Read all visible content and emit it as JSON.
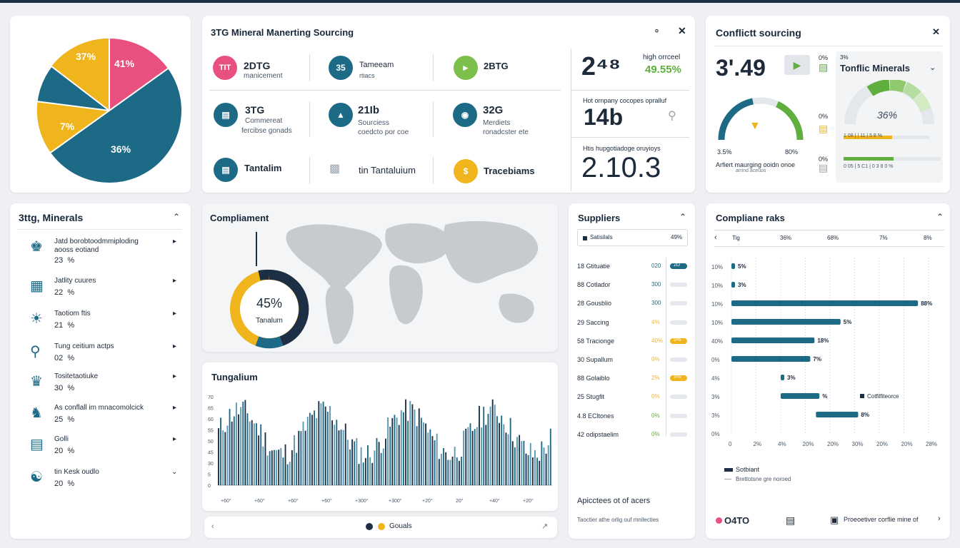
{
  "colors": {
    "navy": "#1d2f45",
    "teal": "#1d6a86",
    "yellow": "#f0b51c",
    "pink": "#e8507f",
    "green": "#5fae3e"
  },
  "pie_chart": {
    "chart_data": {
      "type": "pie",
      "slices": [
        {
          "label": "41%",
          "value": 41,
          "color": "#e8507f"
        },
        {
          "label": "36%",
          "value": 36,
          "color": "#1d6a86"
        },
        {
          "label": "7%",
          "value": 7,
          "color": "#f0b51c"
        },
        {
          "label": "37%",
          "value": 37,
          "color": "#1d6a86"
        }
      ]
    },
    "labels": [
      "37%",
      "41%",
      "7%",
      "36%"
    ]
  },
  "sourcing": {
    "title": "3TG Mineral Manerting Sourcing",
    "row1": [
      {
        "icon": "TIT",
        "title": "2DTG",
        "sub": "manicement"
      },
      {
        "icon": "35",
        "title": "Tameeam",
        "sub": "rtiacs"
      },
      {
        "icon": "flag-icon",
        "title": "2BTG",
        "sub": ""
      }
    ],
    "row2": [
      {
        "title": "3TG",
        "sub1": "Commereat",
        "sub2": "fercibse gonads"
      },
      {
        "title": "21Ib",
        "sub1": "Sourciess",
        "sub2": "coedcto por coe"
      },
      {
        "title": "32G",
        "sub1": "Merdiets",
        "sub2": "ronadcster ete"
      }
    ],
    "row3": [
      {
        "title": "Tantalim"
      },
      {
        "title": "tin Tantaluium"
      },
      {
        "title": "Tracebiams"
      }
    ],
    "stat1": {
      "big": "2⁴⁸",
      "risk_label": "high orrceel",
      "risk_value": "49.55%"
    },
    "stat2": {
      "label": "Hot ornpany cocopes opralluf",
      "big": "14b"
    },
    "stat3": {
      "label": "Htis hupgotiadoge oruyioys",
      "big": "2.10.3"
    }
  },
  "conflict": {
    "title": "Conflictt sourcing",
    "big": "3'.49",
    "left_pcts": [
      "0%",
      "0%",
      "0%"
    ],
    "gauge_min": "3.5%",
    "gauge_max": "80%",
    "caption": "Arfiert maurging ooidn onoe",
    "caption2": "arrind aceuos",
    "dropdown": "Tonflic Minerals",
    "pct_top": "3%",
    "gauge_value": "36%",
    "gauge_value_num": 36,
    "bar1": "1 08 |  | 11 |  5 8 %",
    "bar2": "0 05 | 5 C1 | 0 3 8 0 %"
  },
  "minerals": {
    "title": "3ttg, Minerals",
    "items": [
      {
        "name": "Jatd borobtoodmmiploding",
        "name2": "aooss eotiand",
        "pct": "23  %"
      },
      {
        "name": "Jatlity cuures",
        "pct": "22  %"
      },
      {
        "name": "Taotiom ftis",
        "pct": "21  %"
      },
      {
        "name": "Tung ceitium actps",
        "pct": "02  %"
      },
      {
        "name": "Tositetaotiuke",
        "pct": "30  %"
      },
      {
        "name": "As conflall im mnacomolcick",
        "pct": "25  %"
      },
      {
        "name": "Golli",
        "pct": "20  %"
      },
      {
        "name": "tin Kesk oudlo",
        "pct": "20  %"
      }
    ]
  },
  "compliance_map": {
    "title": "Compliament",
    "donut_value": "45%",
    "donut_label": "Tanalum",
    "donut_fraction": 0.45
  },
  "tungsten": {
    "title": "Tungalium",
    "chart_data": {
      "type": "bar",
      "x_tick_labels": [
        "+60°",
        "+60°",
        "+60°",
        "+60°",
        "+300°",
        "+300°",
        "+20°",
        "20°",
        "+40°",
        "+20°"
      ],
      "y_tick_labels": [
        "70",
        "65",
        "60",
        "55",
        "50",
        "45",
        "30",
        "5",
        "0"
      ],
      "ylim": [
        0,
        70
      ]
    }
  },
  "footer_legend": {
    "text": "Gouals"
  },
  "suppliers": {
    "title": "Suppliers",
    "header_label": "Satisilals",
    "header_value": "49%",
    "rows": [
      {
        "name": "18 Gtituatie",
        "value": "020",
        "badge": "2D",
        "fill": 1.0,
        "color": "#1d6a86"
      },
      {
        "name": "88 Cotlador",
        "value": "300",
        "badge": "",
        "fill": 0.0,
        "color": "#1d6a86"
      },
      {
        "name": "28 Gousblio",
        "value": "300",
        "badge": "",
        "fill": 0.0,
        "color": "#1d6a86"
      },
      {
        "name": "29 Saccing",
        "value": "4%",
        "badge": "",
        "fill": 0.0,
        "color": "#f0b51c"
      },
      {
        "name": "58 Tracionge",
        "value": "40%",
        "badge": "5%",
        "fill": 1.0,
        "color": "#f0b51c"
      },
      {
        "name": "30 Supallum",
        "value": "0%",
        "badge": "",
        "fill": 0.0,
        "color": "#f0b51c"
      },
      {
        "name": "88 Golaiblo",
        "value": "2%",
        "badge": "3%",
        "fill": 1.0,
        "color": "#f0b51c"
      },
      {
        "name": "25 Stugfit",
        "value": "0%",
        "badge": "",
        "fill": 0.0,
        "color": "#f0b51c"
      },
      {
        "name": "4.8 ECltones",
        "value": "0%",
        "badge": "",
        "fill": 0.0,
        "color": "#5fae3e"
      },
      {
        "name": "42 odipstaelim",
        "value": "0%",
        "badge": "",
        "fill": 0.0,
        "color": "#5fae3e"
      }
    ],
    "footer1": "Apicctees ot of acers",
    "footer2": "Taoctier athe orlig ouf mnilecties"
  },
  "risk": {
    "title": "Compliane raks",
    "header": [
      "Tig",
      "36%",
      "68%",
      "7%",
      "8%"
    ],
    "chart_data": {
      "type": "bar",
      "orientation": "horizontal",
      "xlim": [
        0,
        28
      ],
      "x_tick_labels": [
        "0",
        "2%",
        "4%",
        "20%",
        "20%",
        "30%",
        "20%",
        "20%",
        "28%"
      ],
      "rows": [
        {
          "y_label": "10%",
          "start": 0,
          "end": 0.3,
          "label": "5%"
        },
        {
          "y_label": "10%",
          "start": 0,
          "end": 0.3,
          "label": "3%"
        },
        {
          "y_label": "10%",
          "start": 0,
          "end": 26.5,
          "label": "88%"
        },
        {
          "y_label": "10%",
          "start": 0,
          "end": 15.5,
          "label": "5%"
        },
        {
          "y_label": "40%",
          "start": 0,
          "end": 11.8,
          "label": "18%"
        },
        {
          "y_label": "0%",
          "start": 0,
          "end": 11.2,
          "label": "7%"
        },
        {
          "y_label": "4%",
          "start": 7.0,
          "end": 7.4,
          "label": "3%"
        },
        {
          "y_label": "3%",
          "start": 7.0,
          "end": 12.5,
          "label": "%",
          "extra": "Cotfilfiteorce"
        },
        {
          "y_label": "3%",
          "start": 12.0,
          "end": 18.0,
          "label": "8%"
        },
        {
          "y_label": "0%",
          "start": 0,
          "end": 0,
          "label": ""
        }
      ]
    },
    "legend1": "Sotbiant",
    "legend2": "Brettotsne gre noroed",
    "footer_value": "O4TO",
    "footer_text": "Proeoetiver corflie mine of"
  }
}
